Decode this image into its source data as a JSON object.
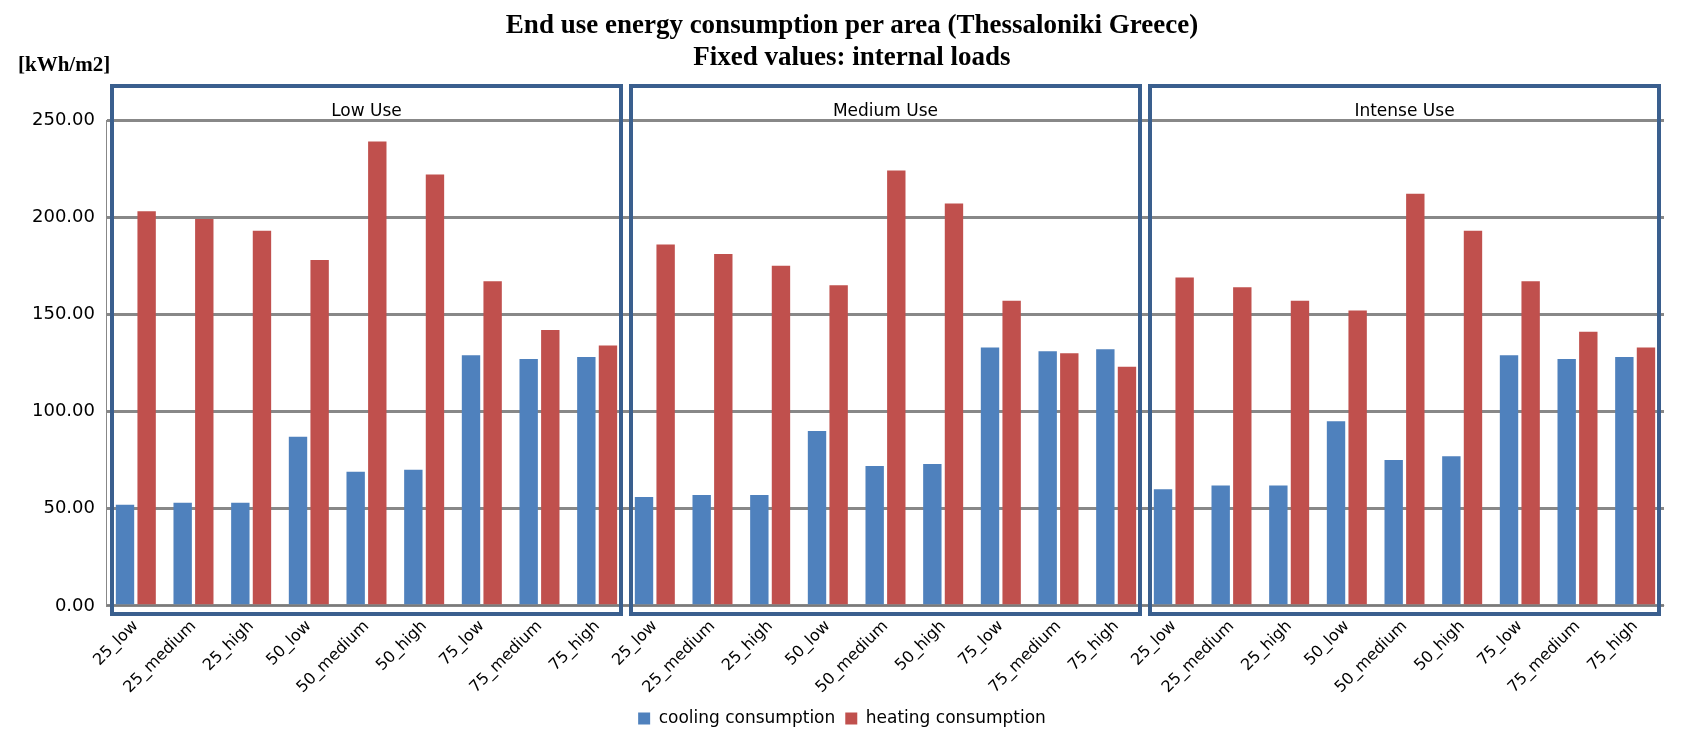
{
  "chart_data": {
    "type": "bar",
    "title": "End use energy consumption per area (Thessaloniki Greece)",
    "subtitle": "Fixed values: internal loads",
    "ylabel": "[kWh/m2]",
    "categories": [
      "25_low",
      "25_medium",
      "25_high",
      "50_low",
      "50_medium",
      "50_high",
      "75_low",
      "75_medium",
      "75_high",
      "25_low",
      "25_medium",
      "25_high",
      "50_low",
      "50_medium",
      "50_high",
      "75_low",
      "75_medium",
      "75_high",
      "25_low",
      "25_medium",
      "25_high",
      "50_low",
      "50_medium",
      "50_high",
      "75_low",
      "75_medium",
      "75_high"
    ],
    "series": [
      {
        "name": "cooling consumption",
        "color": "#4f81bd",
        "values": [
          52,
          53,
          53,
          87,
          69,
          70,
          129,
          127,
          128,
          56,
          57,
          57,
          90,
          72,
          73,
          133,
          131,
          132,
          60,
          62,
          62,
          95,
          75,
          77,
          129,
          127,
          128
        ]
      },
      {
        "name": "heating consumption",
        "color": "#c0504d",
        "values": [
          203,
          199,
          193,
          178,
          239,
          222,
          167,
          142,
          134,
          186,
          181,
          175,
          165,
          224,
          207,
          157,
          130,
          123,
          169,
          164,
          157,
          152,
          212,
          193,
          167,
          141,
          133
        ]
      }
    ],
    "ylim": [
      0,
      250
    ],
    "yticks": [
      {
        "value": 0,
        "label": "0.00"
      },
      {
        "value": 50,
        "label": "50.00"
      },
      {
        "value": 100,
        "label": "100.00"
      },
      {
        "value": 150,
        "label": "150.00"
      },
      {
        "value": 200,
        "label": "200.00"
      },
      {
        "value": 250,
        "label": "250.00"
      }
    ],
    "annotations": [
      "Low Use",
      "Medium Use",
      "Intense Use"
    ],
    "grid": "y",
    "legend": "bottom"
  }
}
